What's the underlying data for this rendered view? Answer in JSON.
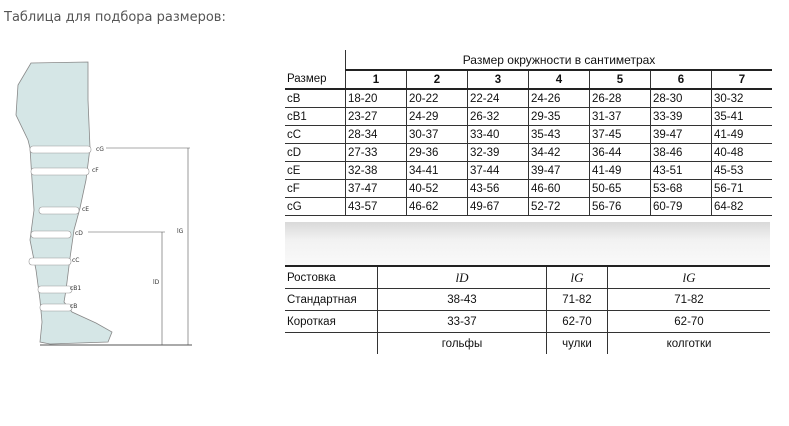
{
  "title": "Таблица для подбора размеров:",
  "diagram": {
    "labels": [
      "cG",
      "cF",
      "cE",
      "cD",
      "cC",
      "cB1",
      "cB"
    ],
    "lengths": [
      "lG",
      "lD"
    ],
    "color": "#d5e6e6"
  },
  "size_table": {
    "caption": "Размер окружности в сантиметрах",
    "headers": [
      "Размер",
      "1",
      "2",
      "3",
      "4",
      "5",
      "6",
      "7"
    ],
    "rows": [
      [
        "cB",
        "18-20",
        "20-22",
        "22-24",
        "24-26",
        "26-28",
        "28-30",
        "30-32"
      ],
      [
        "cB1",
        "23-27",
        "24-29",
        "26-32",
        "29-35",
        "31-37",
        "33-39",
        "35-41"
      ],
      [
        "cC",
        "28-34",
        "30-37",
        "33-40",
        "35-43",
        "37-45",
        "39-47",
        "41-49"
      ],
      [
        "cD",
        "27-33",
        "29-36",
        "32-39",
        "34-42",
        "36-44",
        "38-46",
        "40-48"
      ],
      [
        "cE",
        "32-38",
        "34-41",
        "37-44",
        "39-47",
        "41-49",
        "43-51",
        "45-53"
      ],
      [
        "cF",
        "37-47",
        "40-52",
        "43-56",
        "46-60",
        "50-65",
        "53-68",
        "56-71"
      ],
      [
        "cG",
        "43-57",
        "46-62",
        "49-67",
        "52-72",
        "56-76",
        "60-79",
        "64-82"
      ]
    ]
  },
  "height_table": {
    "headers": [
      "Ростовка",
      "lD",
      "lG",
      "lG"
    ],
    "rows": [
      [
        "Стандартная",
        "38-43",
        "71-82",
        "71-82"
      ],
      [
        "Короткая",
        "33-37",
        "62-70",
        "62-70"
      ]
    ],
    "footer": [
      "",
      "гольфы",
      "чулки",
      "колготки"
    ]
  }
}
